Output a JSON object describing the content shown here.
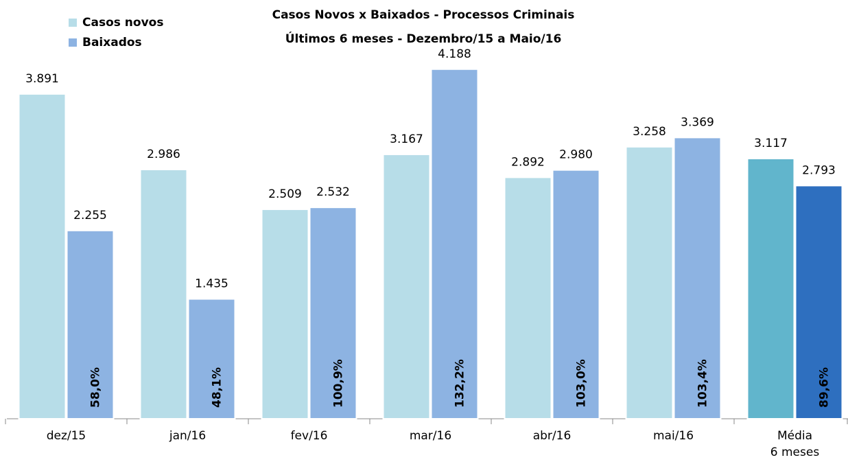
{
  "chart_data": {
    "type": "bar",
    "title": "Casos Novos x Baixados - Processos Criminais",
    "subtitle": "Últimos 6 meses - Dezembro/15 a Maio/16",
    "categories": [
      "dez/15",
      "jan/16",
      "fev/16",
      "mar/16",
      "abr/16",
      "mai/16",
      "Média\n6 meses"
    ],
    "series": [
      {
        "name": "Casos novos",
        "color": "#b7dde8",
        "colors": [
          "#b7dde8",
          "#b7dde8",
          "#b7dde8",
          "#b7dde8",
          "#b7dde8",
          "#b7dde8",
          "#61b5cc"
        ],
        "values": [
          3891,
          2986,
          2509,
          3167,
          2892,
          3258,
          3117
        ],
        "value_labels": [
          "3.891",
          "2.986",
          "2.509",
          "3.167",
          "2.892",
          "3.258",
          "3.117"
        ]
      },
      {
        "name": "Baixados",
        "color": "#8db3e2",
        "colors": [
          "#8db3e2",
          "#8db3e2",
          "#8db3e2",
          "#8db3e2",
          "#8db3e2",
          "#8db3e2",
          "#2e6fbf"
        ],
        "values": [
          2255,
          1435,
          2532,
          4188,
          2980,
          3369,
          2793
        ],
        "value_labels": [
          "2.255",
          "1.435",
          "2.532",
          "4.188",
          "2.980",
          "3.369",
          "2.793"
        ]
      }
    ],
    "ratios": {
      "values": [
        58.0,
        48.1,
        100.9,
        132.2,
        103.0,
        103.4,
        89.6
      ],
      "value_labels": [
        "58,0%",
        "48,1%",
        "100,9%",
        "132,2%",
        "103,0%",
        "103,4%",
        "89,6%"
      ],
      "colors": [
        "#000000",
        "#000000",
        "#000000",
        "#000000",
        "#000000",
        "#000000",
        "#ffffff"
      ]
    },
    "ylim": [
      0,
      4400
    ],
    "legend": "top-left"
  }
}
